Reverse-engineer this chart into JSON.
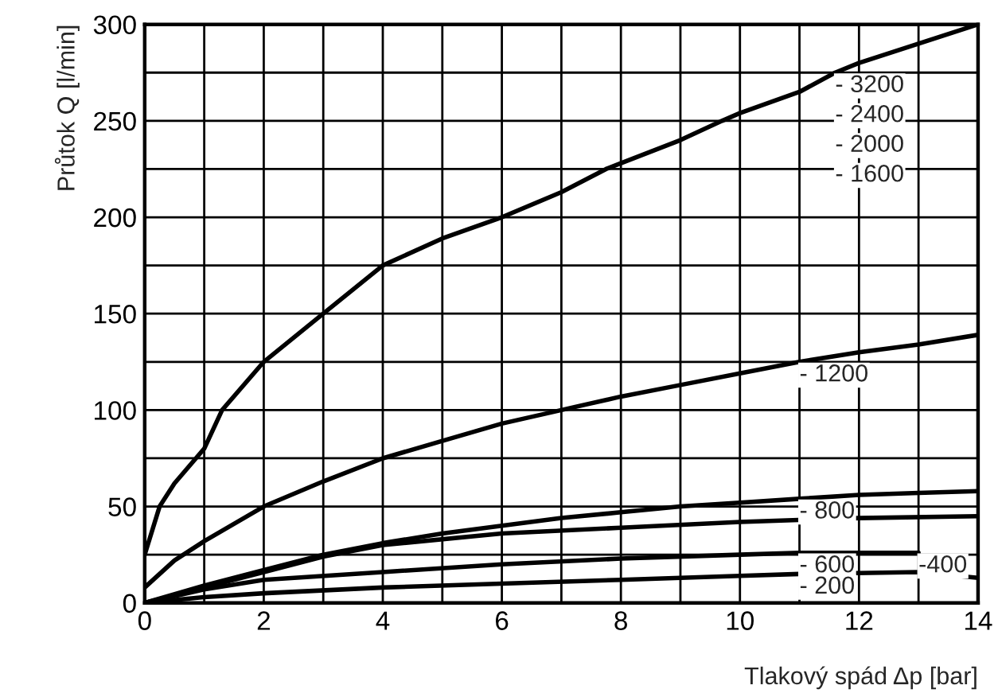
{
  "chart_data": {
    "type": "line",
    "xlabel": "Tlakový spád Δp [bar]",
    "ylabel": "Průtok Q [l/min]",
    "xlim": [
      0,
      14
    ],
    "ylim": [
      0,
      300
    ],
    "xticks": [
      0,
      {
        "value": 1,
        "label": null
      },
      2,
      {
        "value": 3,
        "label": null
      },
      4,
      {
        "value": 5,
        "label": null
      },
      6,
      {
        "value": 7,
        "label": null
      },
      8,
      {
        "value": 9,
        "label": null
      },
      10,
      {
        "value": 11,
        "label": null
      },
      12,
      {
        "value": 13,
        "label": null
      },
      14
    ],
    "yticks": [
      0,
      {
        "value": 25,
        "label": null
      },
      50,
      {
        "value": 75,
        "label": null
      },
      100,
      {
        "value": 125,
        "label": null
      },
      150,
      {
        "value": 175,
        "label": null
      },
      200,
      {
        "value": 225,
        "label": null
      },
      250,
      {
        "value": 275,
        "label": null
      },
      300
    ],
    "grid": true,
    "marker": "none",
    "line_style": "solid",
    "series": [
      {
        "color": "#000000",
        "x": [
          0,
          0.25,
          0.5,
          1,
          1.3,
          2,
          3,
          4,
          5,
          6,
          7,
          7.75,
          8,
          9,
          9.7,
          10,
          11,
          11.6,
          12,
          13,
          14
        ],
        "values": [
          25,
          50,
          62,
          80,
          100,
          125,
          150,
          175,
          189,
          200,
          213,
          225,
          228,
          240,
          250,
          254,
          265,
          275,
          280,
          290,
          300
        ]
      },
      {
        "color": "#000000",
        "x": [
          0,
          0.5,
          1,
          2,
          3,
          4,
          5,
          6,
          7,
          8,
          9,
          10,
          11,
          12,
          13,
          14
        ],
        "values": [
          8,
          22,
          32,
          50,
          63,
          75,
          84,
          93,
          100,
          107,
          113,
          119,
          125,
          130,
          134,
          139
        ]
      },
      {
        "color": "#000000",
        "x": [
          0,
          1,
          2,
          3,
          4,
          5,
          6,
          7,
          8,
          9,
          10,
          11,
          12,
          13,
          14
        ],
        "values": [
          0,
          9,
          17,
          25,
          31,
          36,
          40,
          44,
          47,
          50,
          52,
          54,
          56,
          57,
          58
        ]
      },
      {
        "color": "#000000",
        "x": [
          0,
          1,
          2,
          3,
          4,
          6,
          8,
          10,
          12,
          14
        ],
        "values": [
          0,
          8,
          16,
          24,
          30,
          36,
          39,
          42,
          44,
          45
        ]
      },
      {
        "color": "#000000",
        "x": [
          0,
          1,
          2,
          4,
          6,
          8,
          10,
          11,
          13
        ],
        "values": [
          0,
          7,
          12,
          16,
          20,
          23,
          25,
          26,
          26
        ]
      },
      {
        "color": "#000000",
        "x": [
          0,
          1,
          2,
          4,
          6,
          8,
          10,
          11,
          13,
          14
        ],
        "values": [
          0,
          3,
          5,
          8,
          10,
          12,
          14,
          15,
          16,
          13
        ]
      }
    ],
    "annotations": [
      {
        "text": "- 3200",
        "x": 11.6,
        "y": 275
      },
      "- 2400",
      "- 2000",
      "- 1600",
      {
        "text": "- 1200",
        "x": 11,
        "y": 125
      },
      {
        "text": "- 800",
        "x": 11,
        "y": 54
      },
      {
        "text": "- 600",
        "x": 11,
        "y": 26
      },
      {
        "text": "-400",
        "x": 13,
        "y": 26
      },
      {
        "text": "- 200",
        "x": 11,
        "y": 15
      }
    ]
  }
}
